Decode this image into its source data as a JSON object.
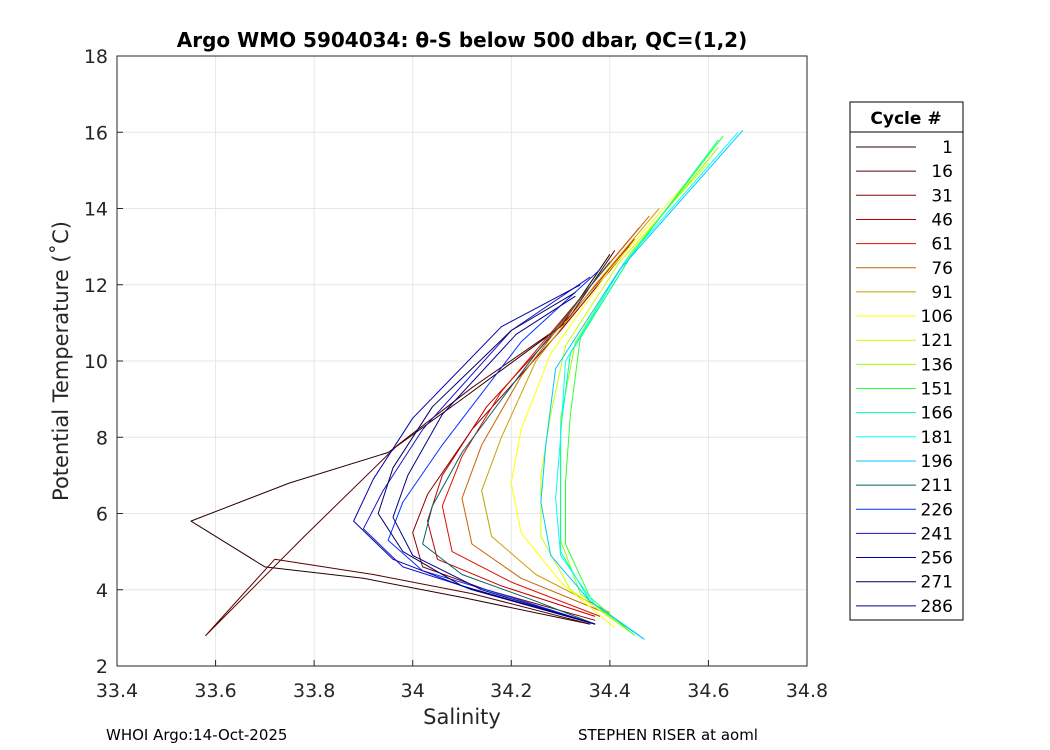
{
  "chart_data": {
    "type": "line",
    "title": "Argo WMO 5904034: θ-S below 500 dbar,  QC=(1,2)",
    "xlabel": "Salinity",
    "ylabel": "Potential Temperature (˚C)",
    "xlim": [
      33.4,
      34.8
    ],
    "ylim": [
      2,
      18
    ],
    "xticks": [
      "33.4",
      "33.6",
      "33.8",
      "34",
      "34.2",
      "34.4",
      "34.6",
      "34.8"
    ],
    "yticks": [
      "2",
      "4",
      "6",
      "8",
      "10",
      "12",
      "14",
      "16",
      "18"
    ],
    "grid": true,
    "legend_title": "Cycle #",
    "legend_position": "right",
    "series": [
      {
        "name": "1",
        "color": "#2a0000",
        "x": [
          34.36,
          34.1,
          33.9,
          33.7,
          33.55,
          33.75,
          33.95,
          34.1,
          34.3,
          34.4
        ],
        "y": [
          3.1,
          3.8,
          4.3,
          4.6,
          5.8,
          6.8,
          7.6,
          9.0,
          10.9,
          12.8
        ]
      },
      {
        "name": "16",
        "color": "#5a0000",
        "x": [
          34.36,
          34.12,
          33.92,
          33.72,
          33.58,
          33.78,
          33.97,
          34.12,
          34.31,
          34.41
        ],
        "y": [
          3.1,
          3.9,
          4.4,
          4.8,
          2.8,
          5.4,
          7.8,
          9.3,
          11.0,
          12.9
        ]
      },
      {
        "name": "31",
        "color": "#8b0000",
        "x": [
          34.37,
          34.15,
          34.02,
          34.0,
          34.03,
          34.12,
          34.3,
          34.44
        ],
        "y": [
          3.2,
          4.0,
          4.6,
          5.5,
          6.5,
          8.2,
          10.8,
          13.0
        ]
      },
      {
        "name": "46",
        "color": "#c00000",
        "x": [
          34.37,
          34.18,
          34.05,
          34.03,
          34.06,
          34.15,
          34.32,
          34.45
        ],
        "y": [
          3.3,
          4.1,
          4.8,
          5.8,
          7.0,
          8.8,
          11.2,
          13.2
        ]
      },
      {
        "name": "61",
        "color": "#e01000",
        "x": [
          34.38,
          34.2,
          34.08,
          34.06,
          34.1,
          34.18,
          34.33,
          34.46
        ],
        "y": [
          3.3,
          4.2,
          5.0,
          6.2,
          7.5,
          9.2,
          11.5,
          13.5
        ]
      },
      {
        "name": "76",
        "color": "#c86400",
        "x": [
          34.39,
          34.22,
          34.12,
          34.1,
          34.14,
          34.22,
          34.35,
          34.48
        ],
        "y": [
          3.4,
          4.3,
          5.2,
          6.4,
          7.8,
          9.6,
          11.8,
          13.8
        ]
      },
      {
        "name": "91",
        "color": "#c8a000",
        "x": [
          34.4,
          34.25,
          34.16,
          34.14,
          34.18,
          34.25,
          34.37,
          34.5
        ],
        "y": [
          3.4,
          4.4,
          5.4,
          6.6,
          8.0,
          10.0,
          12.0,
          14.0
        ]
      },
      {
        "name": "106",
        "color": "#ffff00",
        "x": [
          34.41,
          34.3,
          34.22,
          34.2,
          34.22,
          34.28,
          34.4,
          34.55
        ],
        "y": [
          3.0,
          4.2,
          5.5,
          6.8,
          8.2,
          10.2,
          12.4,
          14.6
        ]
      },
      {
        "name": "121",
        "color": "#c8ff00",
        "x": [
          34.43,
          34.32,
          34.26,
          34.26,
          34.28,
          34.31,
          34.42,
          34.6
        ],
        "y": [
          3.0,
          4.0,
          5.4,
          7.0,
          8.6,
          10.4,
          12.6,
          15.2
        ]
      },
      {
        "name": "136",
        "color": "#96ff00",
        "x": [
          34.44,
          34.34,
          34.3,
          34.3,
          34.3,
          34.33,
          34.44,
          34.62
        ],
        "y": [
          2.9,
          3.9,
          5.3,
          6.9,
          8.5,
          10.5,
          12.8,
          15.6
        ]
      },
      {
        "name": "151",
        "color": "#32ff32",
        "x": [
          34.45,
          34.36,
          34.31,
          34.31,
          34.32,
          34.34,
          34.45,
          34.63
        ],
        "y": [
          2.8,
          3.8,
          5.2,
          6.8,
          8.6,
          10.6,
          12.9,
          15.9
        ]
      },
      {
        "name": "166",
        "color": "#00ffa0",
        "x": [
          34.46,
          34.36,
          34.3,
          34.3,
          34.3,
          34.32,
          34.44,
          34.62
        ],
        "y": [
          2.8,
          3.7,
          5.0,
          6.5,
          8.2,
          10.2,
          12.7,
          15.8
        ]
      },
      {
        "name": "181",
        "color": "#00ffff",
        "x": [
          34.47,
          34.37,
          34.3,
          34.29,
          34.3,
          34.31,
          34.43,
          34.66
        ],
        "y": [
          2.7,
          3.6,
          4.9,
          6.4,
          8.0,
          10.0,
          12.6,
          16.0
        ]
      },
      {
        "name": "196",
        "color": "#00c8ff",
        "x": [
          34.47,
          34.36,
          34.28,
          34.26,
          34.27,
          34.29,
          34.42,
          34.67
        ],
        "y": [
          2.7,
          3.7,
          4.9,
          6.3,
          7.8,
          9.8,
          12.4,
          16.05
        ]
      },
      {
        "name": "211",
        "color": "#006464",
        "x": [
          34.37,
          34.25,
          34.1,
          34.02,
          34.04,
          34.1,
          34.25,
          34.4
        ],
        "y": [
          3.1,
          3.7,
          4.4,
          5.2,
          6.2,
          7.6,
          10.2,
          12.6
        ]
      },
      {
        "name": "226",
        "color": "#0032ff",
        "x": [
          34.37,
          34.2,
          34.02,
          33.95,
          33.98,
          34.06,
          34.22,
          34.38
        ],
        "y": [
          3.1,
          3.8,
          4.5,
          5.3,
          6.3,
          7.8,
          10.5,
          12.4
        ]
      },
      {
        "name": "241",
        "color": "#1414c8",
        "x": [
          34.37,
          34.15,
          33.98,
          33.9,
          33.94,
          34.02,
          34.2,
          34.36
        ],
        "y": [
          3.1,
          3.9,
          4.6,
          5.6,
          6.6,
          8.2,
          10.8,
          12.2
        ]
      },
      {
        "name": "256",
        "color": "#0000aa",
        "x": [
          34.37,
          34.12,
          33.96,
          33.88,
          33.92,
          34.0,
          34.18,
          34.34
        ],
        "y": [
          3.1,
          4.0,
          4.8,
          5.8,
          6.9,
          8.5,
          10.9,
          12.0
        ]
      },
      {
        "name": "271",
        "color": "#000064",
        "x": [
          34.37,
          34.1,
          33.98,
          33.93,
          33.96,
          34.04,
          34.2,
          34.33
        ],
        "y": [
          3.1,
          4.1,
          5.0,
          6.0,
          7.2,
          8.8,
          10.8,
          11.8
        ]
      },
      {
        "name": "286",
        "color": "#00008c",
        "x": [
          34.37,
          34.14,
          34.0,
          33.96,
          33.99,
          34.06,
          34.21,
          34.33
        ],
        "y": [
          3.1,
          4.0,
          4.9,
          5.9,
          7.0,
          8.6,
          10.7,
          11.7
        ]
      }
    ]
  },
  "footer": {
    "left": "WHOI Argo:14-Oct-2025",
    "right": "STEPHEN RISER at aoml"
  }
}
